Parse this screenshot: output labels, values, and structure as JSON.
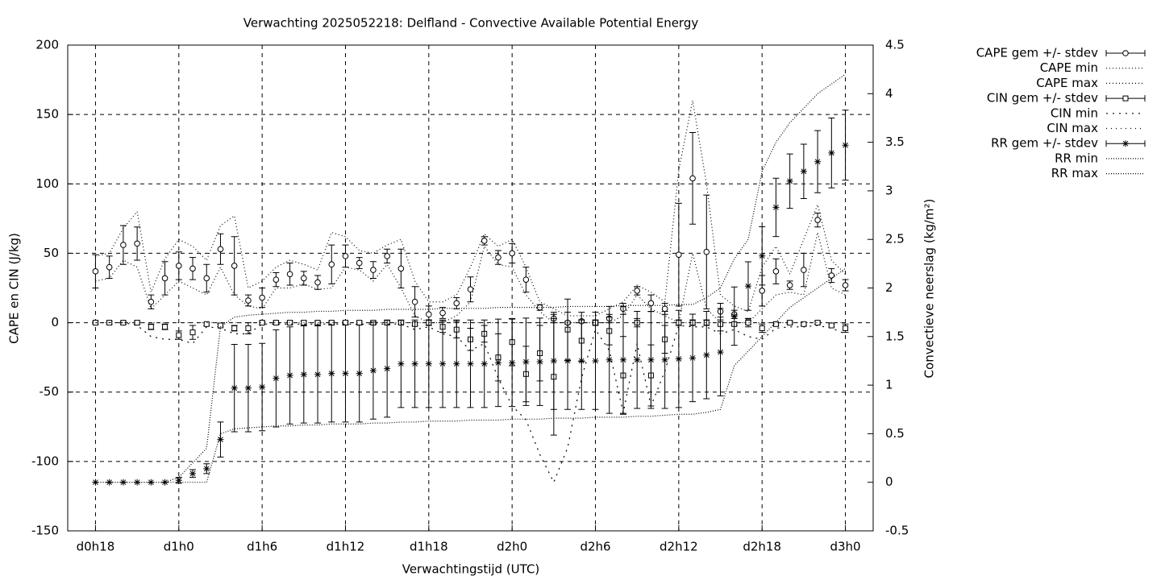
{
  "chart_data": {
    "type": "errorbar",
    "title": "Verwachting 2025052218: Delfland - Convective Available Potential Energy",
    "xlabel": "Verwachtingstijd (UTC)",
    "ylabel": "CAPE en CIN (J/kg)",
    "y2label": "Convectieve neerslag (kg/m²)",
    "x": [
      18,
      19,
      20,
      21,
      22,
      23,
      24,
      25,
      26,
      27,
      28,
      29,
      30,
      31,
      32,
      33,
      34,
      35,
      36,
      37,
      38,
      39,
      40,
      41,
      42,
      43,
      44,
      45,
      46,
      47,
      48,
      49,
      50,
      51,
      52,
      53,
      54,
      55,
      56,
      57,
      58,
      59,
      60,
      61,
      62,
      63,
      64,
      65,
      66,
      67,
      68,
      69,
      70,
      71,
      72
    ],
    "xlim": [
      16,
      74
    ],
    "xticks": [
      {
        "value": 18,
        "label": "d0h18"
      },
      {
        "value": 24,
        "label": "d1h0"
      },
      {
        "value": 30,
        "label": "d1h6"
      },
      {
        "value": 36,
        "label": "d1h12"
      },
      {
        "value": 42,
        "label": "d1h18"
      },
      {
        "value": 48,
        "label": "d2h0"
      },
      {
        "value": 54,
        "label": "d2h6"
      },
      {
        "value": 60,
        "label": "d2h12"
      },
      {
        "value": 66,
        "label": "d2h18"
      },
      {
        "value": 72,
        "label": "d3h0"
      }
    ],
    "ylim": [
      -150,
      200
    ],
    "yticks": [
      -150,
      -100,
      -50,
      0,
      50,
      100,
      150,
      200
    ],
    "y2lim": [
      -0.5,
      4.5
    ],
    "y2ticks": [
      -0.5,
      0,
      0.5,
      1,
      1.5,
      2,
      2.5,
      3,
      3.5,
      4,
      4.5
    ],
    "grid": true,
    "legend": "outside-right",
    "series": [
      {
        "name": "CAPE gem +/- stdev",
        "style": "errorbar",
        "marker": "circle",
        "color": "#000000",
        "values": [
          37,
          40,
          56,
          57,
          15,
          32,
          41,
          39,
          32,
          53,
          41,
          16,
          18,
          31,
          35,
          32,
          29,
          42,
          48,
          43,
          38,
          48,
          39,
          15,
          6,
          7,
          14,
          24,
          59,
          47,
          50,
          31,
          11,
          3,
          0,
          1,
          0,
          3,
          10,
          23,
          14,
          10,
          49,
          104,
          51,
          8,
          6,
          1,
          23,
          37,
          27,
          38,
          74,
          34,
          27
        ],
        "errors": [
          12,
          8,
          14,
          12,
          5,
          12,
          10,
          8,
          10,
          11,
          21,
          4,
          7,
          5,
          8,
          5,
          5,
          14,
          8,
          4,
          6,
          5,
          14,
          11,
          6,
          4,
          4,
          9,
          3,
          5,
          7,
          9,
          2,
          3,
          1,
          1,
          1,
          3,
          4,
          3,
          6,
          4,
          37,
          33,
          41,
          6,
          3,
          2,
          11,
          9,
          3,
          12,
          5,
          5,
          4
        ]
      },
      {
        "name": "CAPE min",
        "style": "dotted",
        "dash": "1,3",
        "color": "#000000",
        "values": [
          30,
          32,
          45,
          40,
          10,
          20,
          30,
          25,
          20,
          40,
          20,
          12,
          10,
          25,
          25,
          28,
          24,
          25,
          40,
          38,
          30,
          42,
          25,
          5,
          0,
          0,
          5,
          15,
          55,
          42,
          40,
          20,
          8,
          0,
          0,
          0,
          0,
          0,
          5,
          20,
          10,
          5,
          0,
          50,
          10,
          0,
          0,
          0,
          10,
          20,
          22,
          20,
          65,
          25,
          20
        ]
      },
      {
        "name": "CAPE max",
        "style": "dotted",
        "dash": "1,3",
        "color": "#000000",
        "values": [
          48,
          50,
          68,
          80,
          22,
          46,
          60,
          55,
          45,
          70,
          77,
          25,
          30,
          40,
          45,
          42,
          38,
          65,
          62,
          52,
          50,
          56,
          60,
          30,
          15,
          15,
          20,
          40,
          64,
          55,
          60,
          40,
          15,
          10,
          5,
          5,
          5,
          10,
          15,
          27,
          22,
          15,
          110,
          160,
          100,
          20,
          12,
          8,
          40,
          55,
          35,
          60,
          85,
          45,
          35
        ]
      },
      {
        "name": "CIN gem +/- stdev",
        "style": "errorbar",
        "marker": "square",
        "color": "#000000",
        "values": [
          0,
          0,
          0,
          0,
          -3,
          -3,
          -9,
          -7,
          -1,
          -2,
          -4,
          -4,
          0,
          0,
          0,
          0,
          0,
          0,
          0,
          0,
          0,
          0,
          0,
          -1,
          0,
          -3,
          -5,
          -12,
          -8,
          -25,
          -14,
          -37,
          -22,
          -39,
          -5,
          -13,
          0,
          -6,
          -38,
          0,
          -38,
          -12,
          0,
          0,
          0,
          -1,
          -1,
          0,
          -4,
          -1,
          0,
          -1,
          0,
          -2,
          -4
        ],
        "errors": [
          1,
          1,
          1,
          1,
          2,
          2,
          3,
          5,
          1,
          1,
          2,
          4,
          1,
          1,
          1,
          1,
          1,
          1,
          1,
          1,
          1,
          1,
          1,
          1,
          2,
          4,
          6,
          8,
          6,
          17,
          17,
          20,
          20,
          42,
          22,
          15,
          2,
          10,
          28,
          3,
          22,
          10,
          2,
          2,
          2,
          5,
          1,
          3,
          3,
          1,
          1,
          1,
          1,
          1,
          3
        ]
      },
      {
        "name": "CIN min",
        "style": "dotted",
        "dash": "2,6",
        "color": "#000000",
        "values": [
          0,
          0,
          0,
          -2,
          -10,
          -12,
          -12,
          -15,
          -3,
          -4,
          -8,
          -8,
          -1,
          -1,
          -1,
          -1,
          -1,
          -1,
          -1,
          -1,
          -1,
          -1,
          -1,
          -5,
          -3,
          -8,
          -10,
          -20,
          -15,
          -40,
          -60,
          -70,
          -95,
          -115,
          -90,
          -40,
          -5,
          -20,
          -65,
          -15,
          -60,
          -35,
          -2,
          -3,
          -3,
          -8,
          -5,
          -10,
          -12,
          -4,
          -3,
          -3,
          -2,
          -4,
          -8
        ]
      },
      {
        "name": "CIN max",
        "style": "dotted",
        "dash": "1,5",
        "color": "#000000",
        "values": [
          0,
          0,
          0,
          0,
          0,
          0,
          0,
          0,
          0,
          0,
          0,
          0,
          0,
          0,
          0,
          0,
          0,
          0,
          0,
          0,
          0,
          0,
          0,
          0,
          0,
          0,
          0,
          0,
          0,
          0,
          0,
          0,
          0,
          0,
          0,
          0,
          0,
          0,
          0,
          0,
          0,
          0,
          0,
          0,
          0,
          0,
          0,
          0,
          0,
          0,
          0,
          0,
          0,
          0,
          0
        ]
      },
      {
        "name": "RR gem +/- stdev",
        "style": "errorbar",
        "marker": "star",
        "axis": "y2",
        "color": "#000000",
        "values": [
          0,
          0,
          0,
          0,
          0,
          0,
          0.02,
          0.09,
          0.14,
          0.44,
          0.97,
          0.97,
          0.98,
          1.07,
          1.1,
          1.11,
          1.11,
          1.12,
          1.12,
          1.12,
          1.15,
          1.17,
          1.22,
          1.22,
          1.22,
          1.22,
          1.22,
          1.22,
          1.22,
          1.23,
          1.23,
          1.24,
          1.24,
          1.25,
          1.25,
          1.25,
          1.25,
          1.26,
          1.26,
          1.26,
          1.26,
          1.26,
          1.27,
          1.28,
          1.31,
          1.34,
          1.71,
          2.02,
          2.33,
          2.83,
          3.1,
          3.2,
          3.3,
          3.39,
          3.47
        ],
        "errors": [
          0,
          0,
          0,
          0,
          0,
          0,
          0.03,
          0.04,
          0.05,
          0.18,
          0.45,
          0.45,
          0.45,
          0.5,
          0.5,
          0.5,
          0.5,
          0.5,
          0.5,
          0.5,
          0.5,
          0.5,
          0.45,
          0.45,
          0.45,
          0.45,
          0.45,
          0.45,
          0.45,
          0.45,
          0.45,
          0.45,
          0.45,
          0.5,
          0.5,
          0.5,
          0.5,
          0.55,
          0.55,
          0.5,
          0.5,
          0.5,
          0.5,
          0.45,
          0.45,
          0.45,
          0.3,
          0.25,
          0.3,
          0.3,
          0.28,
          0.28,
          0.32,
          0.36,
          0.36
        ]
      },
      {
        "name": "RR min",
        "style": "dotted",
        "dash": "1,2",
        "axis": "y2",
        "color": "#000000",
        "values": [
          0,
          0,
          0,
          0,
          0,
          0,
          0,
          0,
          0,
          0.5,
          0.55,
          0.56,
          0.57,
          0.58,
          0.58,
          0.59,
          0.59,
          0.6,
          0.6,
          0.6,
          0.61,
          0.61,
          0.62,
          0.62,
          0.63,
          0.63,
          0.63,
          0.64,
          0.64,
          0.64,
          0.65,
          0.65,
          0.65,
          0.66,
          0.66,
          0.66,
          0.67,
          0.67,
          0.67,
          0.68,
          0.68,
          0.69,
          0.7,
          0.7,
          0.72,
          0.75,
          1.2,
          1.35,
          1.5,
          1.65,
          1.8,
          1.9,
          2.0,
          2.1,
          2.2
        ]
      },
      {
        "name": "RR max",
        "style": "dotted",
        "dash": "1,2",
        "axis": "y2",
        "color": "#000000",
        "values": [
          0,
          0,
          0,
          0,
          0,
          0,
          0.05,
          0.2,
          0.35,
          1.6,
          1.7,
          1.72,
          1.73,
          1.74,
          1.75,
          1.75,
          1.76,
          1.76,
          1.77,
          1.77,
          1.77,
          1.78,
          1.78,
          1.78,
          1.78,
          1.79,
          1.79,
          1.79,
          1.79,
          1.8,
          1.8,
          1.8,
          1.8,
          1.8,
          1.81,
          1.81,
          1.81,
          1.81,
          1.82,
          1.82,
          1.82,
          1.82,
          1.83,
          1.83,
          1.9,
          2.0,
          2.3,
          2.5,
          3.2,
          3.5,
          3.7,
          3.85,
          4.0,
          4.1,
          4.2
        ]
      }
    ]
  }
}
